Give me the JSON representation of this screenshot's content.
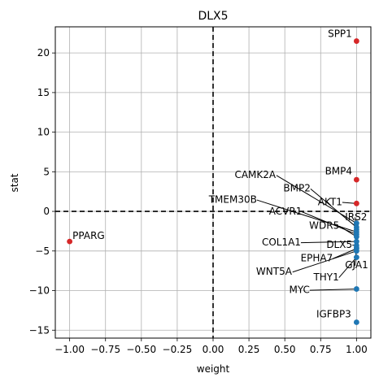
{
  "chart_data": {
    "type": "scatter",
    "title": "DLX5",
    "xlabel": "weight",
    "ylabel": "stat",
    "xlim": [
      -1.1,
      1.1
    ],
    "ylim": [
      -16,
      23.3
    ],
    "xticks": [
      -1.0,
      -0.75,
      -0.5,
      -0.25,
      0.0,
      0.25,
      0.5,
      0.75,
      1.0
    ],
    "xtick_labels": [
      "−1.00",
      "−0.75",
      "−0.50",
      "−0.25",
      "0.00",
      "0.25",
      "0.50",
      "0.75",
      "1.00"
    ],
    "yticks": [
      -15,
      -10,
      -5,
      0,
      5,
      10,
      15,
      20
    ],
    "ytick_labels": [
      "−15",
      "−10",
      "−5",
      "0",
      "5",
      "10",
      "15",
      "20"
    ],
    "grid": true,
    "reference_lines": {
      "x": 0,
      "y": 0,
      "style": "dashed"
    },
    "colors": {
      "positive": "#d62728",
      "negative": "#1f77b4",
      "grid": "#b0b0b0"
    },
    "points": [
      {
        "label": "SPP1",
        "x": 1.0,
        "y": 21.5,
        "color": "#d62728"
      },
      {
        "label": "BMP4",
        "x": 1.0,
        "y": 4.0,
        "color": "#d62728"
      },
      {
        "label": "AKT1",
        "x": 1.0,
        "y": 1.0,
        "color": "#d62728"
      },
      {
        "label": "PPARG",
        "x": -1.0,
        "y": -3.8,
        "color": "#d62728"
      },
      {
        "label": "CAMK2A",
        "x": 1.0,
        "y": -1.5,
        "color": "#1f77b4"
      },
      {
        "label": "BMP2",
        "x": 1.0,
        "y": -2.0,
        "color": "#1f77b4"
      },
      {
        "label": "IRS2",
        "x": 1.0,
        "y": -2.3,
        "color": "#1f77b4"
      },
      {
        "label": "TMEM30B",
        "x": 1.0,
        "y": -2.6,
        "color": "#1f77b4"
      },
      {
        "label": "ACVR1",
        "x": 1.0,
        "y": -2.9,
        "color": "#1f77b4"
      },
      {
        "label": "WDR5",
        "x": 1.0,
        "y": -3.2,
        "color": "#1f77b4"
      },
      {
        "label": "COL1A1",
        "x": 1.0,
        "y": -3.8,
        "color": "#1f77b4"
      },
      {
        "label": "DLX5",
        "x": 1.0,
        "y": -4.3,
        "color": "#1f77b4"
      },
      {
        "label": "EPHA7",
        "x": 1.0,
        "y": -4.7,
        "color": "#1f77b4"
      },
      {
        "label": "WNT5A",
        "x": 1.0,
        "y": -5.0,
        "color": "#1f77b4"
      },
      {
        "label": "GJA1",
        "x": 1.0,
        "y": -4.6,
        "color": "#1f77b4"
      },
      {
        "label": "THY1",
        "x": 1.0,
        "y": -5.8,
        "color": "#1f77b4"
      },
      {
        "label": "MYC",
        "x": 1.0,
        "y": -9.8,
        "color": "#1f77b4"
      },
      {
        "label": "IGFBP3",
        "x": 1.0,
        "y": -14.0,
        "color": "#1f77b4"
      }
    ],
    "annotations": [
      {
        "label": "SPP1",
        "tx": 0.8,
        "ty": 22.0,
        "line": false
      },
      {
        "label": "BMP4",
        "tx": 0.78,
        "ty": 4.7,
        "line": false
      },
      {
        "label": "CAMK2A",
        "tx": 0.15,
        "ty": 4.2,
        "line": true
      },
      {
        "label": "BMP2",
        "tx": 0.49,
        "ty": 2.5,
        "line": true
      },
      {
        "label": "AKT1",
        "tx": 0.73,
        "ty": 0.8,
        "line": true
      },
      {
        "label": "TMEM30B",
        "tx": -0.03,
        "ty": 1.1,
        "line": true
      },
      {
        "label": "ACVR1",
        "tx": 0.39,
        "ty": -0.4,
        "line": true
      },
      {
        "label": "IRS2",
        "tx": 0.92,
        "ty": -1.1,
        "line": true
      },
      {
        "label": "WDR5",
        "tx": 0.67,
        "ty": -2.2,
        "line": true
      },
      {
        "label": "COL1A1",
        "tx": 0.34,
        "ty": -4.3,
        "line": true
      },
      {
        "label": "DLX5",
        "tx": 0.79,
        "ty": -4.6,
        "line": true
      },
      {
        "label": "EPHA7",
        "tx": 0.61,
        "ty": -6.3,
        "line": true
      },
      {
        "label": "WNT5A",
        "tx": 0.3,
        "ty": -8.0,
        "line": true
      },
      {
        "label": "GJA1",
        "tx": 0.92,
        "ty": -7.2,
        "line": true
      },
      {
        "label": "THY1",
        "tx": 0.7,
        "ty": -8.7,
        "line": true
      },
      {
        "label": "MYC",
        "tx": 0.53,
        "ty": -10.3,
        "line": true
      },
      {
        "label": "IGFBP3",
        "tx": 0.72,
        "ty": -13.4,
        "line": false
      },
      {
        "label": "PPARG",
        "tx": -0.98,
        "ty": -3.5,
        "line": false
      }
    ]
  }
}
